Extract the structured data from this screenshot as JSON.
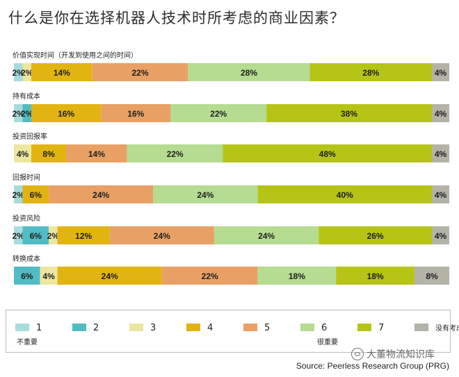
{
  "title": "什么是你在选择机器人技术时所考虑的商业因素？",
  "legend": {
    "items": [
      {
        "label": "1",
        "color": "#a8dcdc"
      },
      {
        "label": "2",
        "color": "#52bcc4"
      },
      {
        "label": "3",
        "color": "#ece7a0"
      },
      {
        "label": "4",
        "color": "#e2b412"
      },
      {
        "label": "5",
        "color": "#e8a064"
      },
      {
        "label": "6",
        "color": "#b5dc90"
      },
      {
        "label": "7",
        "color": "#b6c418"
      },
      {
        "label": "没有考虑",
        "color": "#b3b3a8"
      }
    ],
    "low_label": "不重要",
    "high_label": "很重要"
  },
  "source": "Source: Peerless Research Group (PRG)",
  "watermark": "大董物流知识库",
  "chart_data": {
    "type": "bar",
    "orientation": "horizontal-stacked-100",
    "categories": [
      "价值实现时间（开发到使用之间的时间）",
      "持有成本",
      "投资回报率",
      "回报时间",
      "投资风险",
      "转换成本"
    ],
    "series": [
      {
        "name": "1",
        "values": [
          2,
          2,
          0,
          2,
          2,
          0
        ]
      },
      {
        "name": "2",
        "values": [
          0,
          2,
          0,
          0,
          6,
          6
        ]
      },
      {
        "name": "3",
        "values": [
          2,
          0,
          4,
          0,
          2,
          4
        ]
      },
      {
        "name": "4",
        "values": [
          14,
          16,
          8,
          6,
          12,
          24
        ]
      },
      {
        "name": "5",
        "values": [
          22,
          16,
          14,
          24,
          24,
          22
        ]
      },
      {
        "name": "6",
        "values": [
          28,
          22,
          22,
          24,
          24,
          18
        ]
      },
      {
        "name": "7",
        "values": [
          28,
          38,
          48,
          40,
          26,
          18
        ]
      },
      {
        "name": "没有考虑",
        "values": [
          4,
          4,
          4,
          4,
          4,
          8
        ]
      }
    ],
    "value_suffix": "%",
    "legend_position": "bottom"
  }
}
